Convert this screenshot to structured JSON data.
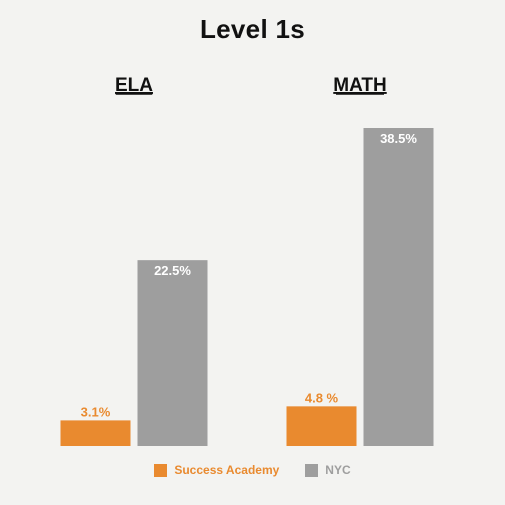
{
  "chart_data": {
    "type": "bar",
    "title": "Level 1s",
    "categories": [
      "ELA",
      "MATH"
    ],
    "series": [
      {
        "name": "Success Academy",
        "values": [
          3.1,
          4.8
        ],
        "labels": [
          "3.1%",
          "4.8 %"
        ],
        "color": "#e98a2f"
      },
      {
        "name": "NYC",
        "values": [
          22.5,
          38.5
        ],
        "labels": [
          "22.5%",
          "38.5%"
        ],
        "color": "#9e9e9e"
      }
    ],
    "ylim": [
      0,
      38.5
    ],
    "grid": false,
    "legend_position": "bottom"
  }
}
